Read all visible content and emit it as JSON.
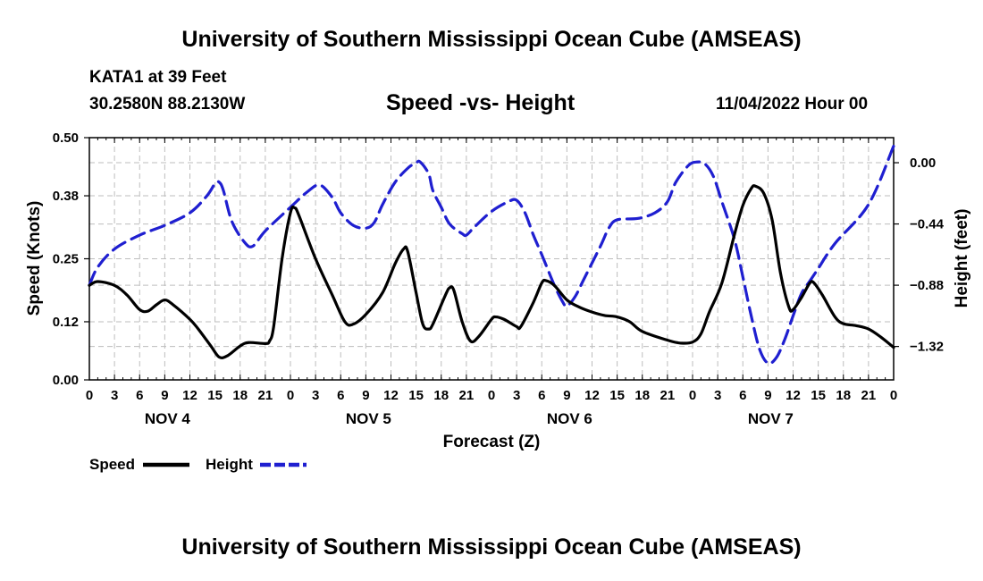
{
  "header": {
    "title": "University of Southern Mississippi Ocean Cube (AMSEAS)",
    "station": "KATA1 at 39 Feet",
    "coords": "30.2580N  88.2130W",
    "chart_title": "Speed -vs- Height",
    "datetime": "11/04/2022 Hour 00"
  },
  "footer": {
    "title": "University of Southern Mississippi Ocean Cube (AMSEAS)"
  },
  "legend": {
    "speed_label": "Speed",
    "height_label": "Height"
  },
  "chart_data": {
    "type": "line",
    "title": "Speed -vs- Height",
    "xlabel": "Forecast (Z)",
    "ylabel": "Speed (Knots)",
    "y2label": "Height (feet)",
    "x": [
      0,
      3,
      6,
      9,
      12,
      15,
      18,
      21,
      24,
      27,
      30,
      33,
      36,
      39,
      42,
      45,
      48,
      51,
      54,
      57,
      60,
      63,
      66,
      69,
      72,
      75,
      78,
      81,
      84,
      87,
      90,
      93,
      96
    ],
    "x_tick_labels": [
      "0",
      "3",
      "6",
      "9",
      "12",
      "15",
      "18",
      "21",
      "0",
      "3",
      "6",
      "9",
      "12",
      "15",
      "18",
      "21",
      "0",
      "3",
      "6",
      "9",
      "12",
      "15",
      "18",
      "21",
      "0",
      "3",
      "6",
      "9",
      "12",
      "15",
      "18",
      "21",
      "0"
    ],
    "day_labels": [
      {
        "label": "NOV 4",
        "at_hour": 9
      },
      {
        "label": "NOV 5",
        "at_hour": 33
      },
      {
        "label": "NOV 6",
        "at_hour": 57
      },
      {
        "label": "NOV 7",
        "at_hour": 81
      }
    ],
    "xlim": [
      0,
      96
    ],
    "ylim": [
      0,
      0.5
    ],
    "y_ticks": [
      0.0,
      0.12,
      0.25,
      0.38,
      0.5
    ],
    "y_tick_labels": [
      "0.00",
      "0.12",
      "0.25",
      "0.38",
      "0.50"
    ],
    "y2lim": [
      -1.56,
      0.18
    ],
    "y2_ticks": [
      0.0,
      -0.44,
      -0.88,
      -1.32
    ],
    "y2_tick_labels": [
      "0.00",
      "−0.44",
      "−0.88",
      "−1.32"
    ],
    "grid": true,
    "legend_position": "bottom-left",
    "series": [
      {
        "name": "Speed",
        "axis": "left",
        "color": "#000000",
        "dash": "solid",
        "points": [
          [
            0,
            0.195
          ],
          [
            1,
            0.203
          ],
          [
            3,
            0.195
          ],
          [
            4.5,
            0.175
          ],
          [
            6,
            0.145
          ],
          [
            7,
            0.142
          ],
          [
            8,
            0.155
          ],
          [
            9,
            0.165
          ],
          [
            10,
            0.155
          ],
          [
            12,
            0.125
          ],
          [
            13,
            0.105
          ],
          [
            14.5,
            0.07
          ],
          [
            15.5,
            0.047
          ],
          [
            16.5,
            0.05
          ],
          [
            18,
            0.07
          ],
          [
            19,
            0.077
          ],
          [
            21,
            0.075
          ],
          [
            21.5,
            0.08
          ],
          [
            22,
            0.11
          ],
          [
            23,
            0.25
          ],
          [
            24,
            0.345
          ],
          [
            24.5,
            0.355
          ],
          [
            25,
            0.34
          ],
          [
            27,
            0.25
          ],
          [
            29,
            0.175
          ],
          [
            30.5,
            0.12
          ],
          [
            31.5,
            0.115
          ],
          [
            33,
            0.135
          ],
          [
            35,
            0.18
          ],
          [
            36.5,
            0.24
          ],
          [
            37.5,
            0.27
          ],
          [
            38,
            0.265
          ],
          [
            39,
            0.18
          ],
          [
            39.8,
            0.115
          ],
          [
            40.5,
            0.105
          ],
          [
            41,
            0.115
          ],
          [
            42.5,
            0.175
          ],
          [
            43,
            0.19
          ],
          [
            43.5,
            0.185
          ],
          [
            44.5,
            0.12
          ],
          [
            45.5,
            0.08
          ],
          [
            46.5,
            0.09
          ],
          [
            48,
            0.125
          ],
          [
            48.5,
            0.13
          ],
          [
            49.5,
            0.125
          ],
          [
            51,
            0.11
          ],
          [
            51.5,
            0.11
          ],
          [
            53,
            0.16
          ],
          [
            54,
            0.2
          ],
          [
            54.5,
            0.205
          ],
          [
            55.5,
            0.195
          ],
          [
            57,
            0.165
          ],
          [
            58.5,
            0.15
          ],
          [
            60,
            0.14
          ],
          [
            61.5,
            0.133
          ],
          [
            63,
            0.13
          ],
          [
            64.5,
            0.12
          ],
          [
            66,
            0.1
          ],
          [
            69,
            0.082
          ],
          [
            70.5,
            0.076
          ],
          [
            72,
            0.078
          ],
          [
            73,
            0.095
          ],
          [
            74,
            0.14
          ],
          [
            75.5,
            0.2
          ],
          [
            77,
            0.3
          ],
          [
            78,
            0.36
          ],
          [
            79,
            0.395
          ],
          [
            79.5,
            0.4
          ],
          [
            80.5,
            0.385
          ],
          [
            81.5,
            0.33
          ],
          [
            82.5,
            0.22
          ],
          [
            83.5,
            0.15
          ],
          [
            84,
            0.145
          ],
          [
            85,
            0.17
          ],
          [
            86,
            0.2
          ],
          [
            86.5,
            0.2
          ],
          [
            87.5,
            0.175
          ],
          [
            89,
            0.13
          ],
          [
            90,
            0.116
          ],
          [
            91.5,
            0.112
          ],
          [
            93,
            0.105
          ],
          [
            94.5,
            0.088
          ],
          [
            96,
            0.067
          ]
        ]
      },
      {
        "name": "Height",
        "axis": "right",
        "color": "#1f1fd0",
        "dash": "dashed",
        "points": [
          [
            0,
            -0.88
          ],
          [
            1,
            -0.75
          ],
          [
            3,
            -0.62
          ],
          [
            6,
            -0.52
          ],
          [
            9,
            -0.45
          ],
          [
            12,
            -0.36
          ],
          [
            14,
            -0.24
          ],
          [
            15,
            -0.15
          ],
          [
            15.5,
            -0.14
          ],
          [
            16,
            -0.2
          ],
          [
            17,
            -0.42
          ],
          [
            18.5,
            -0.57
          ],
          [
            19.5,
            -0.6
          ],
          [
            21,
            -0.49
          ],
          [
            24,
            -0.32
          ],
          [
            26,
            -0.21
          ],
          [
            27.5,
            -0.16
          ],
          [
            29,
            -0.25
          ],
          [
            30,
            -0.36
          ],
          [
            31.5,
            -0.45
          ],
          [
            33,
            -0.47
          ],
          [
            34,
            -0.43
          ],
          [
            35,
            -0.3
          ],
          [
            36.5,
            -0.14
          ],
          [
            38,
            -0.04
          ],
          [
            39,
            0.0
          ],
          [
            39.5,
            0.005
          ],
          [
            40.5,
            -0.08
          ],
          [
            41,
            -0.2
          ],
          [
            42,
            -0.32
          ],
          [
            43,
            -0.44
          ],
          [
            44.5,
            -0.51
          ],
          [
            45,
            -0.52
          ],
          [
            46,
            -0.46
          ],
          [
            48,
            -0.35
          ],
          [
            50,
            -0.28
          ],
          [
            51,
            -0.27
          ],
          [
            52,
            -0.36
          ],
          [
            53,
            -0.52
          ],
          [
            54,
            -0.66
          ],
          [
            55.5,
            -0.88
          ],
          [
            56.5,
            -1.0
          ],
          [
            57,
            -1.03
          ],
          [
            58,
            -0.96
          ],
          [
            59,
            -0.84
          ],
          [
            61,
            -0.6
          ],
          [
            62,
            -0.47
          ],
          [
            63,
            -0.41
          ],
          [
            65.5,
            -0.4
          ],
          [
            67.5,
            -0.36
          ],
          [
            69,
            -0.28
          ],
          [
            70,
            -0.14
          ],
          [
            71.5,
            -0.02
          ],
          [
            72.5,
            0.005
          ],
          [
            73.5,
            -0.01
          ],
          [
            74.5,
            -0.1
          ],
          [
            75.5,
            -0.28
          ],
          [
            77,
            -0.55
          ],
          [
            78,
            -0.82
          ],
          [
            79,
            -1.1
          ],
          [
            80,
            -1.34
          ],
          [
            81,
            -1.44
          ],
          [
            82,
            -1.4
          ],
          [
            83,
            -1.27
          ],
          [
            84,
            -1.1
          ],
          [
            85,
            -0.94
          ],
          [
            86,
            -0.85
          ],
          [
            87,
            -0.76
          ],
          [
            89,
            -0.58
          ],
          [
            93,
            -0.3
          ],
          [
            96,
            0.12
          ]
        ]
      }
    ]
  }
}
